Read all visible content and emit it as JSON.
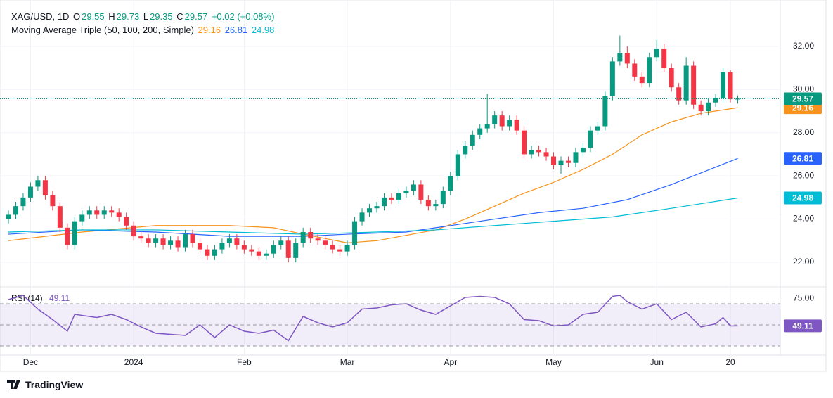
{
  "chart_data": [
    {
      "type": "candlestick",
      "symbol": "XAG/USD, 1D",
      "ohlc_legend": [
        {
          "label": "O",
          "value": 29.55
        },
        {
          "label": "H",
          "value": 29.73
        },
        {
          "label": "L",
          "value": 29.35
        },
        {
          "label": "C",
          "value": 29.57
        }
      ],
      "change": "+0.02 (+0.08%)",
      "indicator": "Moving Average Triple (50, 100, 200, Simple)",
      "up_color": "#089981",
      "down_color": "#f23645",
      "categories": [
        null,
        null,
        null,
        "Dec",
        null,
        null,
        null,
        null,
        null,
        null,
        null,
        null,
        null,
        null,
        null,
        null,
        null,
        "2024",
        null,
        null,
        null,
        null,
        null,
        null,
        null,
        null,
        null,
        null,
        null,
        null,
        null,
        null,
        "Feb",
        null,
        null,
        null,
        null,
        null,
        null,
        null,
        null,
        null,
        null,
        null,
        null,
        null,
        "Mar",
        null,
        null,
        null,
        null,
        null,
        null,
        null,
        null,
        null,
        null,
        null,
        null,
        null,
        "Apr",
        null,
        null,
        null,
        null,
        null,
        null,
        null,
        null,
        null,
        null,
        null,
        null,
        null,
        "May",
        null,
        null,
        null,
        null,
        null,
        null,
        null,
        null,
        null,
        null,
        null,
        null,
        null,
        "Jun",
        null,
        null,
        null,
        null,
        null,
        null,
        null,
        null,
        null,
        "20",
        null
      ],
      "open": [
        24.0,
        24.2,
        24.6,
        25.0,
        25.5,
        25.8,
        25.1,
        24.6,
        23.6,
        22.8,
        23.9,
        24.2,
        24.4,
        24.2,
        24.4,
        24.3,
        24.1,
        23.7,
        23.2,
        23.1,
        22.9,
        23.1,
        22.8,
        23.0,
        22.7,
        23.3,
        22.9,
        22.6,
        22.3,
        22.6,
        22.9,
        23.1,
        22.8,
        22.6,
        22.5,
        22.3,
        22.4,
        22.8,
        23.0,
        22.2,
        22.9,
        23.4,
        23.1,
        23.0,
        22.8,
        22.6,
        22.5,
        22.8,
        23.9,
        24.3,
        24.5,
        24.6,
        25.0,
        24.9,
        25.2,
        25.3,
        25.6,
        24.9,
        24.6,
        24.7,
        25.3,
        26.0,
        27.0,
        27.4,
        27.9,
        28.2,
        28.4,
        28.8,
        28.3,
        28.6,
        28.1,
        27.0,
        27.2,
        27.1,
        26.9,
        26.5,
        26.7,
        26.6,
        27.1,
        27.3,
        28.1,
        28.3,
        29.7,
        31.3,
        31.7,
        31.2,
        30.6,
        30.3,
        31.5,
        31.9,
        31.0,
        30.1,
        29.5,
        31.1,
        29.3,
        29.0,
        29.4,
        29.6,
        30.8,
        29.55
      ],
      "high": [
        24.4,
        24.8,
        25.2,
        25.7,
        26.0,
        26.0,
        25.3,
        24.8,
        23.8,
        24.1,
        24.4,
        24.6,
        24.6,
        24.6,
        24.6,
        24.5,
        24.3,
        23.9,
        23.4,
        23.3,
        23.3,
        23.3,
        23.2,
        23.2,
        23.5,
        23.5,
        23.1,
        22.8,
        22.8,
        23.1,
        23.3,
        23.3,
        23.0,
        22.8,
        22.7,
        22.6,
        23.0,
        23.2,
        23.2,
        23.1,
        23.6,
        23.6,
        23.3,
        23.2,
        23.0,
        22.8,
        23.0,
        24.1,
        24.5,
        24.7,
        24.8,
        25.2,
        25.2,
        25.4,
        25.5,
        25.8,
        25.8,
        25.1,
        24.9,
        25.5,
        26.2,
        27.2,
        27.6,
        28.1,
        28.4,
        29.8,
        29.0,
        29.0,
        28.8,
        28.8,
        28.3,
        27.4,
        27.4,
        27.3,
        27.1,
        26.9,
        26.9,
        27.3,
        27.5,
        28.3,
        28.5,
        29.9,
        31.5,
        32.5,
        32.0,
        31.4,
        30.8,
        31.7,
        32.3,
        32.1,
        31.2,
        30.3,
        31.5,
        31.3,
        29.5,
        29.6,
        29.8,
        31.0,
        30.9,
        29.73
      ],
      "low": [
        23.8,
        24.0,
        24.4,
        24.8,
        25.3,
        24.9,
        24.4,
        23.4,
        22.6,
        22.6,
        23.7,
        24.0,
        24.0,
        24.0,
        24.1,
        23.9,
        23.5,
        23.0,
        22.9,
        22.7,
        22.7,
        22.6,
        22.6,
        22.5,
        22.5,
        22.7,
        22.4,
        22.1,
        22.1,
        22.4,
        22.7,
        22.6,
        22.4,
        22.3,
        22.1,
        22.1,
        22.2,
        22.6,
        22.0,
        22.0,
        22.7,
        22.9,
        22.8,
        22.6,
        22.4,
        22.3,
        22.3,
        22.6,
        23.7,
        24.1,
        24.3,
        24.4,
        24.7,
        24.7,
        25.0,
        25.1,
        24.7,
        24.4,
        24.4,
        24.5,
        25.1,
        25.8,
        26.8,
        27.2,
        27.7,
        28.0,
        28.2,
        28.1,
        28.1,
        27.9,
        26.8,
        26.8,
        26.9,
        26.7,
        26.3,
        26.1,
        26.4,
        26.4,
        26.9,
        27.1,
        27.9,
        28.1,
        29.5,
        31.1,
        31.0,
        30.4,
        30.1,
        30.1,
        31.3,
        30.8,
        29.9,
        29.3,
        29.3,
        29.1,
        28.8,
        28.8,
        29.2,
        29.4,
        29.4,
        29.35
      ],
      "close": [
        24.2,
        24.6,
        25.0,
        25.5,
        25.8,
        25.1,
        24.6,
        23.6,
        22.8,
        23.9,
        24.2,
        24.4,
        24.2,
        24.4,
        24.3,
        24.1,
        23.7,
        23.2,
        23.1,
        22.9,
        23.1,
        22.8,
        23.0,
        22.7,
        23.3,
        22.9,
        22.6,
        22.3,
        22.6,
        22.9,
        23.1,
        22.8,
        22.6,
        22.5,
        22.3,
        22.4,
        22.8,
        23.0,
        22.2,
        22.9,
        23.4,
        23.1,
        23.0,
        22.8,
        22.6,
        22.5,
        22.8,
        23.9,
        24.3,
        24.5,
        24.6,
        25.0,
        24.9,
        25.2,
        25.3,
        25.6,
        24.9,
        24.6,
        24.7,
        25.3,
        26.0,
        27.0,
        27.4,
        27.9,
        28.2,
        28.4,
        28.8,
        28.3,
        28.6,
        28.1,
        27.0,
        27.2,
        27.1,
        26.9,
        26.5,
        26.7,
        26.6,
        27.1,
        27.3,
        28.1,
        28.3,
        29.7,
        31.3,
        31.7,
        31.2,
        30.6,
        30.3,
        31.5,
        31.9,
        31.0,
        30.1,
        29.5,
        31.1,
        29.3,
        29.0,
        29.4,
        29.6,
        30.8,
        29.55,
        29.57
      ],
      "series": [
        {
          "color": "#f7931a",
          "x": [
            0,
            10,
            20,
            30,
            36,
            40,
            46,
            50,
            58,
            62,
            66,
            70,
            74,
            78,
            82,
            86,
            90,
            94,
            99
          ],
          "values": [
            23.0,
            23.4,
            23.7,
            23.7,
            23.6,
            23.3,
            22.9,
            23.0,
            23.5,
            24.0,
            24.6,
            25.2,
            25.7,
            26.3,
            27.0,
            27.9,
            28.5,
            28.9,
            29.16
          ]
        },
        {
          "color": "#2962ff",
          "x": [
            0,
            10,
            20,
            30,
            40,
            46,
            54,
            60,
            66,
            72,
            78,
            84,
            90,
            99
          ],
          "values": [
            23.3,
            23.5,
            23.4,
            23.2,
            23.2,
            23.3,
            23.4,
            23.7,
            24.0,
            24.3,
            24.5,
            24.9,
            25.6,
            26.81
          ]
        },
        {
          "color": "#00bcd4",
          "x": [
            0,
            10,
            20,
            30,
            40,
            50,
            58,
            66,
            74,
            82,
            90,
            99
          ],
          "values": [
            23.4,
            23.5,
            23.5,
            23.4,
            23.3,
            23.4,
            23.5,
            23.7,
            23.9,
            24.1,
            24.5,
            24.98
          ]
        }
      ],
      "ylim": [
        20.86,
        33.82
      ],
      "yticks": [
        {
          "value": 22,
          "label": "22.00"
        },
        {
          "value": 24,
          "label": "24.00"
        },
        {
          "value": 26,
          "label": "26.00"
        },
        {
          "value": 28,
          "label": "28.00"
        },
        {
          "value": 30,
          "label": "30.00"
        },
        {
          "value": 32,
          "label": "32.00"
        }
      ],
      "grid": true
    },
    {
      "type": "line",
      "title": "RSI (14)",
      "color": "#7e57c2",
      "x": [
        0,
        2,
        4,
        6,
        8,
        9,
        12,
        14,
        16,
        18,
        20,
        24,
        26,
        28,
        30,
        32,
        34,
        36,
        38,
        40,
        42,
        44,
        46,
        48,
        50,
        52,
        54,
        56,
        58,
        60,
        62,
        64,
        66,
        68,
        70,
        72,
        74,
        76,
        78,
        80,
        82,
        83,
        84,
        86,
        88,
        90,
        92,
        94,
        96,
        97,
        98,
        99
      ],
      "values": [
        74,
        78,
        65,
        55,
        44,
        60,
        57,
        60,
        55,
        48,
        42,
        40,
        50,
        38,
        50,
        44,
        42,
        45,
        35,
        58,
        52,
        48,
        52,
        65,
        66,
        69,
        70,
        64,
        60,
        68,
        76,
        77,
        76,
        70,
        55,
        54,
        49,
        50,
        60,
        62,
        77,
        78,
        72,
        65,
        70,
        55,
        62,
        48,
        51,
        57,
        49,
        49.11
      ],
      "bands": [
        70,
        50,
        30
      ],
      "ylim": [
        21.3,
        84.7
      ],
      "yticks": [
        {
          "value": 75,
          "label": "75.00"
        }
      ]
    }
  ],
  "footer": "TradingView"
}
